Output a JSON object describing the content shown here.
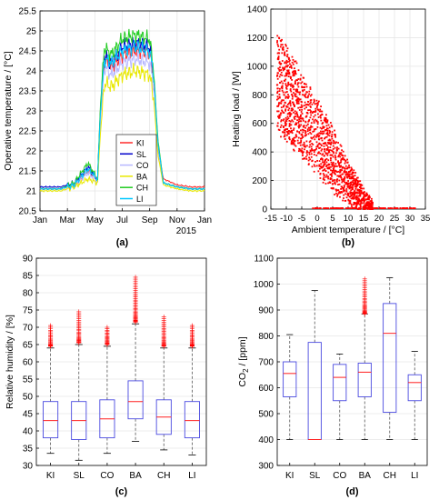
{
  "colors": {
    "axis": "#000000",
    "grid": "#e6e6e6",
    "box": "#4a4ae0",
    "median": "#ff2020",
    "outlier": "#ff0000",
    "scatter": "#ff0000"
  },
  "chart_data": [
    {
      "id": "a",
      "panel_label": "(a)",
      "type": "line",
      "xlabel": "",
      "ylabel": "Operative temperature / [°C]",
      "xtick_labels": [
        "Jan",
        "Mar",
        "May",
        "Jul",
        "Sep",
        "Nov",
        "Jan"
      ],
      "xtick_values": [
        0,
        2,
        4,
        6,
        8,
        10,
        12
      ],
      "year_label": "2015",
      "xlim": [
        0,
        12
      ],
      "ylim": [
        20.5,
        25.5
      ],
      "ytick_values": [
        20.5,
        21,
        21.5,
        22,
        22.5,
        23,
        23.5,
        24,
        24.5,
        25,
        25.5
      ],
      "ytick_labels": [
        "20.5",
        "21",
        "21.5",
        "22",
        "22.5",
        "23",
        "23.5",
        "24",
        "24.5",
        "25",
        "25.5"
      ],
      "grid": true,
      "legend_position": "center-right",
      "series": [
        {
          "name": "KI",
          "color": "#ff2a2a",
          "x": [
            0,
            1.5,
            2.5,
            3.5,
            4.2,
            4.4,
            4.7,
            5.2,
            6,
            7,
            8,
            8.3,
            8.6,
            9,
            10,
            11,
            12
          ],
          "y": [
            21.05,
            21.05,
            21.15,
            21.5,
            21.3,
            22.8,
            24.3,
            24.1,
            24.4,
            24.5,
            24.5,
            23.8,
            22.1,
            21.3,
            21.15,
            21.1,
            21.1
          ]
        },
        {
          "name": "SL",
          "color": "#0000cc",
          "x": [
            0,
            1.5,
            2.5,
            3.5,
            4.2,
            4.4,
            4.7,
            5.2,
            6,
            7,
            8,
            8.3,
            8.6,
            9,
            10,
            11,
            12
          ],
          "y": [
            21.1,
            21.1,
            21.2,
            21.6,
            21.3,
            23.0,
            24.4,
            24.2,
            24.6,
            24.7,
            24.6,
            23.9,
            22.2,
            21.2,
            21.1,
            21.05,
            21.05
          ]
        },
        {
          "name": "CO",
          "color": "#b8b8ff",
          "x": [
            0,
            1.5,
            2.5,
            3.5,
            4.2,
            4.4,
            4.7,
            5.2,
            6,
            7,
            8,
            8.3,
            8.6,
            9,
            10,
            11,
            12
          ],
          "y": [
            21.05,
            21.05,
            21.15,
            21.45,
            21.25,
            22.7,
            24.1,
            23.9,
            24.2,
            24.3,
            24.2,
            23.6,
            22.0,
            21.2,
            21.1,
            21.05,
            21.05
          ]
        },
        {
          "name": "BA",
          "color": "#e8e800",
          "x": [
            0,
            1.5,
            2.5,
            3.5,
            4.2,
            4.4,
            4.7,
            5.2,
            6,
            7,
            8,
            8.3,
            8.6,
            9,
            10,
            11,
            12
          ],
          "y": [
            21.0,
            21.0,
            21.1,
            21.3,
            21.2,
            22.4,
            23.7,
            23.6,
            23.9,
            24.0,
            23.9,
            23.3,
            21.9,
            21.15,
            21.05,
            21.0,
            21.0
          ]
        },
        {
          "name": "CH",
          "color": "#22cc22",
          "x": [
            0,
            1.5,
            2.5,
            3.5,
            4.2,
            4.4,
            4.7,
            5.2,
            6,
            7,
            8,
            8.3,
            8.6,
            9,
            10,
            11,
            12
          ],
          "y": [
            21.05,
            21.05,
            21.2,
            21.7,
            21.3,
            23.1,
            24.6,
            24.4,
            24.8,
            24.9,
            24.8,
            24.0,
            22.3,
            21.2,
            21.1,
            21.05,
            21.05
          ]
        },
        {
          "name": "LI",
          "color": "#00c8ff",
          "x": [
            0,
            1.5,
            2.5,
            3.5,
            4.2,
            4.4,
            4.7,
            5.2,
            6,
            7,
            8,
            8.3,
            8.6,
            9,
            10,
            11,
            12
          ],
          "y": [
            21.05,
            21.05,
            21.15,
            21.55,
            21.3,
            22.9,
            24.3,
            24.2,
            24.5,
            24.6,
            24.5,
            23.9,
            22.2,
            21.2,
            21.1,
            21.05,
            21.05
          ]
        }
      ]
    },
    {
      "id": "b",
      "panel_label": "(b)",
      "type": "scatter",
      "xlabel": "Ambient temperature / [°C]",
      "ylabel": "Heating load / [W]",
      "xlim": [
        -15,
        35
      ],
      "ylim": [
        0,
        1400
      ],
      "xtick_values": [
        -15,
        -10,
        -5,
        0,
        5,
        10,
        15,
        20,
        25,
        30,
        35
      ],
      "xtick_labels": [
        "-15",
        "-10",
        "-5",
        "0",
        "5",
        "10",
        "15",
        "20",
        "25",
        "30",
        "35"
      ],
      "ytick_values": [
        0,
        200,
        400,
        600,
        800,
        1000,
        1200,
        1400
      ],
      "ytick_labels": [
        "0",
        "200",
        "400",
        "600",
        "800",
        "1000",
        "1200",
        "1400"
      ],
      "grid": true,
      "trend_description": "Heating load decreases roughly linearly with ambient temperature, from about 1200 W at -12 °C to 0 W above about 18 °C; points at 0 W extend to about 32 °C.",
      "trend_upper": [
        [
          -12,
          1220
        ],
        [
          -5,
          950
        ],
        [
          0,
          760
        ],
        [
          5,
          560
        ],
        [
          10,
          330
        ],
        [
          15,
          140
        ],
        [
          18,
          30
        ]
      ],
      "trend_lower": [
        [
          -13,
          540
        ],
        [
          -8,
          450
        ],
        [
          -3,
          330
        ],
        [
          2,
          200
        ],
        [
          7,
          90
        ],
        [
          12,
          20
        ],
        [
          15,
          0
        ]
      ],
      "zero_band": [
        -2,
        32
      ]
    },
    {
      "id": "c",
      "panel_label": "(c)",
      "type": "box",
      "xlabel": "",
      "ylabel": "Relative humidity / [%]",
      "categories": [
        "KI",
        "SL",
        "CO",
        "BA",
        "CH",
        "LI"
      ],
      "ylim": [
        30,
        90
      ],
      "ytick_values": [
        30,
        35,
        40,
        45,
        50,
        55,
        60,
        65,
        70,
        75,
        80,
        85,
        90
      ],
      "ytick_labels": [
        "30",
        "35",
        "40",
        "45",
        "50",
        "55",
        "60",
        "65",
        "70",
        "75",
        "80",
        "85",
        "90"
      ],
      "grid": true,
      "boxes": [
        {
          "name": "KI",
          "whisker_low": 33.5,
          "q1": 38.0,
          "median": 43.0,
          "q3": 48.5,
          "whisker_high": 64.0,
          "outliers_range": [
            64.5,
            70.5
          ]
        },
        {
          "name": "SL",
          "whisker_low": 31.5,
          "q1": 37.5,
          "median": 43.0,
          "q3": 48.5,
          "whisker_high": 65.0,
          "outliers_range": [
            65.5,
            74.5
          ]
        },
        {
          "name": "CO",
          "whisker_low": 33.5,
          "q1": 38.0,
          "median": 43.5,
          "q3": 49.0,
          "whisker_high": 64.5,
          "outliers_range": [
            65.0,
            70.0
          ]
        },
        {
          "name": "BA",
          "whisker_low": 37.0,
          "q1": 43.5,
          "median": 48.5,
          "q3": 54.5,
          "whisker_high": 71.0,
          "outliers_range": [
            71.5,
            84.5
          ]
        },
        {
          "name": "CH",
          "whisker_low": 34.5,
          "q1": 39.0,
          "median": 44.0,
          "q3": 49.0,
          "whisker_high": 64.0,
          "outliers_range": [
            64.5,
            73.0
          ]
        },
        {
          "name": "LI",
          "whisker_low": 33.0,
          "q1": 38.0,
          "median": 43.0,
          "q3": 48.5,
          "whisker_high": 64.0,
          "outliers_range": [
            64.5,
            70.5
          ]
        }
      ]
    },
    {
      "id": "d",
      "panel_label": "(d)",
      "type": "box",
      "xlabel": "",
      "ylabel_main": "CO",
      "ylabel_sub": "2",
      "ylabel_tail": " / [ppm]",
      "categories": [
        "KI",
        "SL",
        "CO",
        "BA",
        "CH",
        "LI"
      ],
      "ylim": [
        300,
        1100
      ],
      "ytick_values": [
        300,
        400,
        500,
        600,
        700,
        800,
        900,
        1000,
        1100
      ],
      "ytick_labels": [
        "300",
        "400",
        "500",
        "600",
        "700",
        "800",
        "900",
        "1000",
        "1100"
      ],
      "grid": true,
      "boxes": [
        {
          "name": "KI",
          "whisker_low": 400,
          "q1": 565,
          "median": 655,
          "q3": 700,
          "whisker_high": 805,
          "outliers_range": null
        },
        {
          "name": "SL",
          "whisker_low": 400,
          "q1": 400,
          "median": 400,
          "q3": 775,
          "whisker_high": 975,
          "outliers_range": null
        },
        {
          "name": "CO",
          "whisker_low": 400,
          "q1": 550,
          "median": 640,
          "q3": 690,
          "whisker_high": 730,
          "outliers_range": null
        },
        {
          "name": "BA",
          "whisker_low": 400,
          "q1": 565,
          "median": 660,
          "q3": 695,
          "whisker_high": 885,
          "outliers_range": [
            885,
            1020
          ]
        },
        {
          "name": "CH",
          "whisker_low": 400,
          "q1": 505,
          "median": 810,
          "q3": 925,
          "whisker_high": 1025,
          "outliers_range": null
        },
        {
          "name": "LI",
          "whisker_low": 400,
          "q1": 550,
          "median": 620,
          "q3": 650,
          "whisker_high": 740,
          "outliers_range": null
        }
      ]
    }
  ]
}
